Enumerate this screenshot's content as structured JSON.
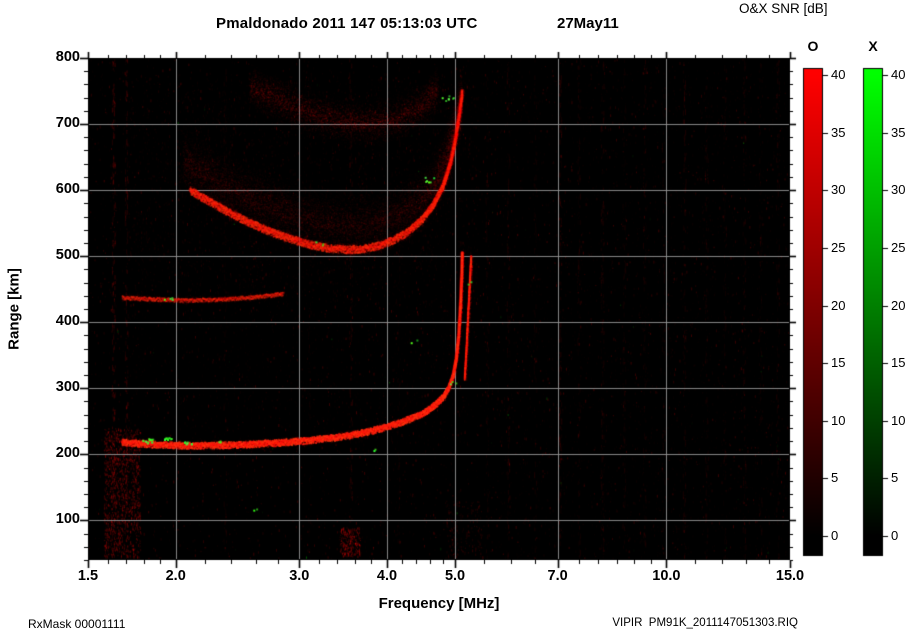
{
  "header": {
    "title": "Pmaldonado 2011 147 05:13:03 UTC",
    "date": "27May11"
  },
  "colorbar": {
    "header": "O&X SNR [dB]",
    "min": 0,
    "max": 40,
    "ticks": [
      "40",
      "35",
      "30",
      "25",
      "20",
      "15",
      "10",
      "5",
      "0"
    ],
    "modes": [
      {
        "label": "O",
        "color": "#ff0000"
      },
      {
        "label": "X",
        "color": "#00ff00"
      }
    ]
  },
  "footer": {
    "left": "RxMask 00001111",
    "right": "VIPIR  PM91K_2011147051303.RIQ"
  },
  "chart_data": {
    "type": "heatmap",
    "title": "Pmaldonado 2011 147 05:13:03 UTC 27May11",
    "description": "VIPIR ionogram: O-mode (red) and X-mode (green) echo SNR versus sounding frequency and virtual range",
    "plot_background": "#000000",
    "x_axis": {
      "label": "Frequency [MHz]",
      "scale": "log",
      "min": 1.5,
      "max": 15,
      "major_ticks": [
        1.5,
        2,
        3,
        4,
        5,
        7,
        10,
        15
      ],
      "major_tick_labels": [
        "1.5",
        "2.0",
        "3.0",
        "4.0",
        "5.0",
        "7.0",
        "10.0",
        "15.0"
      ],
      "minor_ticks": [
        1.6,
        1.7,
        1.8,
        1.9,
        2.2,
        2.4,
        2.6,
        2.8,
        3.2,
        3.4,
        3.6,
        3.8,
        4.2,
        4.4,
        4.6,
        4.8,
        5.5,
        6.0,
        6.5,
        7.5,
        8.0,
        8.5,
        9.0,
        9.5,
        11.0,
        12.0,
        13.0,
        14.0
      ]
    },
    "y_axis": {
      "label": "Range [km]",
      "min": 40,
      "max": 800,
      "major_ticks": [
        100,
        200,
        300,
        400,
        500,
        600,
        700,
        800
      ],
      "major_tick_labels": [
        "100",
        "200",
        "300",
        "400",
        "500",
        "600",
        "700",
        "800"
      ],
      "minor_step": 20
    },
    "value_axis": {
      "label": "O&X SNR [dB]",
      "min": 0,
      "max": 40,
      "tick_step": 5
    },
    "grid": {
      "x_values": [
        2,
        3,
        4,
        5,
        7,
        10
      ],
      "y_values": [
        100,
        200,
        300,
        400,
        500,
        600,
        700
      ],
      "color": "#969696"
    },
    "modes": {
      "O": "#ff0000",
      "X": "#00ff00"
    },
    "traces": [
      {
        "name": "F-region first hop O-mode",
        "points": [
          [
            1.68,
            219
          ],
          [
            1.8,
            217
          ],
          [
            1.95,
            215
          ],
          [
            2.15,
            214
          ],
          [
            2.35,
            215
          ],
          [
            2.55,
            216
          ],
          [
            2.75,
            218
          ],
          [
            2.95,
            220
          ],
          [
            3.15,
            223
          ],
          [
            3.35,
            226
          ],
          [
            3.55,
            230
          ],
          [
            3.75,
            235
          ],
          [
            3.95,
            241
          ],
          [
            4.15,
            248
          ],
          [
            4.35,
            256
          ],
          [
            4.55,
            266
          ],
          [
            4.7,
            277
          ],
          [
            4.82,
            289
          ],
          [
            4.9,
            302
          ],
          [
            4.97,
            320
          ],
          [
            5.02,
            345
          ],
          [
            5.06,
            380
          ],
          [
            5.09,
            425
          ],
          [
            5.11,
            470
          ],
          [
            5.12,
            505
          ]
        ],
        "width_km": 10,
        "spread_km": 6,
        "intensity": 0.95
      },
      {
        "name": "F-region first hop X-mode cusp",
        "points": [
          [
            5.16,
            315
          ],
          [
            5.19,
            360
          ],
          [
            5.22,
            415
          ],
          [
            5.25,
            465
          ],
          [
            5.27,
            500
          ]
        ],
        "width_km": 7,
        "spread_km": 7,
        "intensity": 0.5
      },
      {
        "name": "second hop flat segment",
        "points": [
          [
            1.68,
            438
          ],
          [
            1.85,
            436
          ],
          [
            2.05,
            434
          ],
          [
            2.25,
            435
          ],
          [
            2.45,
            437
          ],
          [
            2.65,
            440
          ],
          [
            2.85,
            444
          ]
        ],
        "width_km": 6,
        "spread_km": 5,
        "intensity": 0.45
      },
      {
        "name": "second hop main band lower edge",
        "points": [
          [
            2.1,
            600
          ],
          [
            2.3,
            576
          ],
          [
            2.5,
            556
          ],
          [
            2.7,
            540
          ],
          [
            2.9,
            528
          ],
          [
            3.1,
            519
          ],
          [
            3.3,
            513
          ],
          [
            3.5,
            511
          ],
          [
            3.7,
            512
          ],
          [
            3.9,
            517
          ],
          [
            4.1,
            526
          ],
          [
            4.3,
            539
          ],
          [
            4.5,
            558
          ],
          [
            4.65,
            578
          ],
          [
            4.8,
            605
          ],
          [
            4.92,
            640
          ],
          [
            5.0,
            675
          ],
          [
            5.07,
            715
          ],
          [
            5.12,
            750
          ]
        ],
        "width_km": 12,
        "spread_km": 9,
        "intensity": 0.6
      },
      {
        "name": "second hop diffuse spread",
        "points": [
          [
            2.05,
            645
          ],
          [
            2.35,
            608
          ],
          [
            2.65,
            580
          ],
          [
            2.95,
            560
          ],
          [
            3.25,
            549
          ],
          [
            3.55,
            546
          ],
          [
            3.85,
            551
          ],
          [
            4.15,
            562
          ],
          [
            4.45,
            582
          ],
          [
            4.65,
            605
          ],
          [
            4.85,
            645
          ],
          [
            5.0,
            695
          ],
          [
            5.1,
            735
          ]
        ],
        "width_km": 0,
        "spread_km": 42,
        "intensity": 0.2
      },
      {
        "name": "third hop diffuse band",
        "points": [
          [
            2.55,
            757
          ],
          [
            2.75,
            742
          ],
          [
            2.95,
            728
          ],
          [
            3.15,
            716
          ],
          [
            3.35,
            708
          ],
          [
            3.55,
            703
          ],
          [
            3.75,
            702
          ],
          [
            3.95,
            705
          ],
          [
            4.15,
            711
          ],
          [
            4.35,
            721
          ],
          [
            4.55,
            736
          ],
          [
            4.72,
            753
          ]
        ],
        "width_km": 0,
        "spread_km": 28,
        "intensity": 0.3
      }
    ],
    "green_specks": [
      [
        1.82,
        221,
        12,
        7
      ],
      [
        1.95,
        224,
        9,
        6
      ],
      [
        2.08,
        218,
        7,
        5
      ],
      [
        2.3,
        220,
        3,
        5
      ],
      [
        1.95,
        437,
        4,
        6
      ],
      [
        4.6,
        617,
        6,
        8
      ],
      [
        4.87,
        740,
        7,
        8
      ],
      [
        4.97,
        310,
        3,
        6
      ],
      [
        3.85,
        207,
        2,
        4
      ],
      [
        2.6,
        118,
        2,
        5
      ],
      [
        4.35,
        372,
        2,
        5
      ],
      [
        3.2,
        520,
        3,
        6
      ],
      [
        5.2,
        460,
        2,
        5
      ]
    ],
    "rfi_stripes": [
      [
        1.63,
        0.5
      ],
      [
        1.7,
        0.35
      ],
      [
        2.35,
        0.15
      ],
      [
        3.1,
        0.12
      ],
      [
        3.55,
        0.3
      ],
      [
        4.15,
        0.12
      ],
      [
        5.55,
        0.18
      ],
      [
        5.95,
        0.22
      ],
      [
        6.5,
        0.15
      ],
      [
        7.05,
        0.3
      ],
      [
        7.5,
        0.2
      ],
      [
        8.1,
        0.25
      ],
      [
        8.7,
        0.18
      ],
      [
        9.3,
        0.22
      ],
      [
        9.9,
        0.15
      ],
      [
        10.6,
        0.25
      ],
      [
        11.4,
        0.2
      ],
      [
        12.1,
        0.18
      ],
      [
        12.9,
        0.22
      ],
      [
        13.6,
        0.15
      ],
      [
        14.4,
        0.2
      ]
    ],
    "noise_patches": [
      {
        "f_range": [
          1.58,
          1.78
        ],
        "km_range": [
          45,
          240
        ],
        "count": 1200,
        "alpha": 0.3
      },
      {
        "f_range": [
          3.42,
          3.66
        ],
        "km_range": [
          45,
          90
        ],
        "count": 220,
        "alpha": 0.35
      },
      {
        "f_range": [
          4.85,
          5.45
        ],
        "km_range": [
          45,
          130
        ],
        "count": 160,
        "alpha": 0.18
      },
      {
        "f_range": [
          1.7,
          5.4
        ],
        "km_range": [
          430,
          770
        ],
        "count": 2600,
        "alpha": 0.07
      },
      {
        "f_range": [
          1.7,
          5.2
        ],
        "km_range": [
          200,
          430
        ],
        "count": 900,
        "alpha": 0.05
      },
      {
        "f_range": [
          5.5,
          15.0
        ],
        "km_range": [
          45,
          790
        ],
        "count": 1500,
        "alpha": 0.05
      }
    ],
    "speckle": {
      "count": 5200,
      "green_fraction": 0.015
    }
  }
}
